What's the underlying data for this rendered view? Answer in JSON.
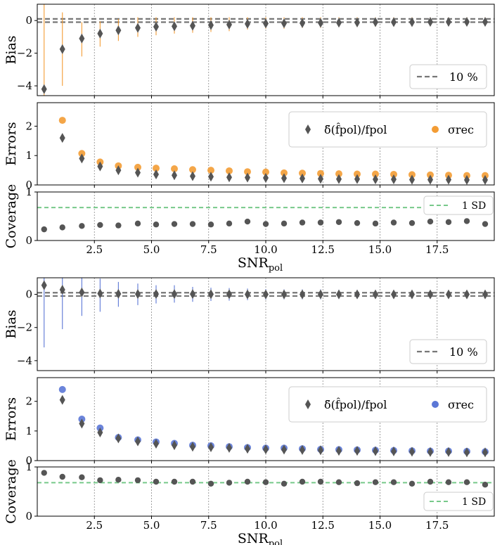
{
  "figure": {
    "xlabel_main": "SNR",
    "xlabel_sub": "pol"
  },
  "colors": {
    "orange": "#f39c34",
    "blue": "#5b77d6",
    "grey": "#555555",
    "green": "#77c98a",
    "ref": "#777777",
    "vgrid": "#888888"
  },
  "chart_data": [
    {
      "type": "scatter",
      "name": "top-bias",
      "ylabel": "Bias",
      "xlim": [
        0,
        20
      ],
      "ylim": [
        -4.6,
        1.0
      ],
      "yticks": [
        0,
        -2,
        -4
      ],
      "legend": {
        "label": "10 %",
        "placement": "lower-right"
      },
      "ref_lines": [
        0.1,
        -0.1
      ],
      "x": [
        0.3,
        1.1,
        1.95,
        2.75,
        3.55,
        4.4,
        5.2,
        6.0,
        6.8,
        7.6,
        8.4,
        9.2,
        10.0,
        10.8,
        11.6,
        12.4,
        13.2,
        14.0,
        14.8,
        15.6,
        16.4,
        17.2,
        18.0,
        18.8,
        19.6
      ],
      "values": [
        -4.2,
        -1.75,
        -1.1,
        -0.8,
        -0.6,
        -0.45,
        -0.38,
        -0.35,
        -0.32,
        -0.28,
        -0.25,
        -0.2,
        -0.18,
        -0.17,
        -0.16,
        -0.14,
        -0.13,
        -0.12,
        -0.1,
        -0.1,
        -0.1,
        -0.08,
        -0.08,
        -0.08,
        -0.08
      ],
      "err_low": [
        -4.6,
        -4.0,
        -2.2,
        -1.6,
        -1.25,
        -1.0,
        -0.9,
        -0.8,
        -0.75,
        -0.7,
        -0.65,
        -0.55,
        -0.5,
        -0.5,
        -0.45,
        -0.45,
        -0.4,
        -0.4,
        -0.38,
        -0.35,
        -0.35,
        -0.35,
        -0.33,
        -0.33,
        -0.3
      ],
      "err_high": [
        1.0,
        0.5,
        -0.1,
        -0.05,
        0.1,
        0.2,
        0.2,
        0.2,
        0.2,
        0.2,
        0.2,
        0.2,
        0.2,
        0.2,
        0.2,
        0.2,
        0.2,
        0.2,
        0.2,
        0.2,
        0.2,
        0.2,
        0.2,
        0.2,
        0.2
      ]
    },
    {
      "type": "scatter",
      "name": "top-errors",
      "ylabel": "Errors",
      "xlim": [
        0,
        20
      ],
      "ylim": [
        0,
        2.8
      ],
      "yticks": [
        0,
        1,
        2
      ],
      "legend": {
        "label_delta": "δ̃(f̂pol)/fpol",
        "label_sigma": "σrec",
        "placement": "top-right"
      },
      "x": [
        1.1,
        1.95,
        2.75,
        3.55,
        4.4,
        5.2,
        6.0,
        6.8,
        7.6,
        8.4,
        9.2,
        10.0,
        10.8,
        11.6,
        12.4,
        13.2,
        14.0,
        14.8,
        15.6,
        16.4,
        17.2,
        18.0,
        18.8,
        19.6
      ],
      "series": [
        {
          "name": "delta",
          "values": [
            1.6,
            0.9,
            0.63,
            0.5,
            0.42,
            0.36,
            0.33,
            0.3,
            0.28,
            0.26,
            0.25,
            0.24,
            0.23,
            0.22,
            0.21,
            0.2,
            0.2,
            0.19,
            0.19,
            0.18,
            0.18,
            0.18,
            0.17,
            0.17
          ]
        },
        {
          "name": "sigma_rec",
          "values": [
            2.2,
            1.07,
            0.78,
            0.65,
            0.6,
            0.57,
            0.55,
            0.52,
            0.5,
            0.48,
            0.45,
            0.44,
            0.41,
            0.4,
            0.39,
            0.38,
            0.37,
            0.37,
            0.36,
            0.35,
            0.34,
            0.33,
            0.32,
            0.32
          ]
        }
      ]
    },
    {
      "type": "scatter",
      "name": "top-coverage",
      "ylabel": "Coverage",
      "xlim": [
        0,
        20
      ],
      "ylim": [
        0,
        1
      ],
      "yticks": [
        0,
        1
      ],
      "legend": {
        "label": "1 SD",
        "placement": "top-right"
      },
      "ref_line": 0.68,
      "xticks": [
        2.5,
        5.0,
        7.5,
        10.0,
        12.5,
        15.0,
        17.5
      ],
      "x": [
        0.3,
        1.1,
        1.95,
        2.75,
        3.55,
        4.4,
        5.2,
        6.0,
        6.8,
        7.6,
        8.4,
        9.2,
        10.0,
        10.8,
        11.6,
        12.4,
        13.2,
        14.0,
        14.8,
        15.6,
        16.4,
        17.2,
        18.0,
        18.8,
        19.6
      ],
      "values": [
        0.23,
        0.27,
        0.3,
        0.32,
        0.31,
        0.35,
        0.33,
        0.34,
        0.34,
        0.33,
        0.35,
        0.39,
        0.34,
        0.35,
        0.37,
        0.37,
        0.38,
        0.36,
        0.35,
        0.37,
        0.36,
        0.39,
        0.38,
        0.4,
        0.34
      ]
    },
    {
      "type": "scatter",
      "name": "bottom-bias",
      "ylabel": "Bias",
      "xlim": [
        0,
        20
      ],
      "ylim": [
        -4.6,
        1.0
      ],
      "yticks": [
        0,
        -2,
        -4
      ],
      "legend": {
        "label": "10 %",
        "placement": "lower-right"
      },
      "ref_lines": [
        0.1,
        -0.1
      ],
      "x": [
        0.3,
        1.1,
        1.95,
        2.75,
        3.55,
        4.4,
        5.2,
        6.0,
        6.8,
        7.6,
        8.4,
        9.2,
        10.0,
        10.8,
        11.6,
        12.4,
        13.2,
        14.0,
        14.8,
        15.6,
        16.4,
        17.2,
        18.0,
        18.8,
        19.6
      ],
      "values": [
        0.55,
        0.28,
        0.12,
        0.05,
        0.03,
        0.02,
        0.02,
        0.02,
        0.02,
        0.01,
        0.01,
        0.0,
        0.0,
        0.0,
        0.0,
        0.0,
        0.0,
        0.0,
        0.0,
        0.0,
        0.0,
        0.0,
        0.0,
        0.0,
        0.0
      ],
      "err_low": [
        -3.2,
        -2.1,
        -1.3,
        -1.05,
        -0.75,
        -0.65,
        -0.55,
        -0.5,
        -0.45,
        -0.4,
        -0.38,
        -0.35,
        -0.32,
        -0.3,
        -0.3,
        -0.3,
        -0.28,
        -0.27,
        -0.26,
        -0.25,
        -0.25,
        -0.24,
        -0.23,
        -0.22,
        -0.22
      ],
      "err_high": [
        1.0,
        1.0,
        1.0,
        0.95,
        0.75,
        0.65,
        0.55,
        0.55,
        0.45,
        0.4,
        0.38,
        0.35,
        0.32,
        0.3,
        0.3,
        0.3,
        0.28,
        0.27,
        0.26,
        0.25,
        0.25,
        0.24,
        0.23,
        0.22,
        0.22
      ]
    },
    {
      "type": "scatter",
      "name": "bottom-errors",
      "ylabel": "Errors",
      "xlim": [
        0,
        20
      ],
      "ylim": [
        0,
        2.8
      ],
      "yticks": [
        0,
        1,
        2
      ],
      "legend": {
        "label_delta": "δ̃(f̂pol)/fpol",
        "label_sigma": "σrec",
        "placement": "top-right"
      },
      "x": [
        1.1,
        1.95,
        2.75,
        3.55,
        4.4,
        5.2,
        6.0,
        6.8,
        7.6,
        8.4,
        9.2,
        10.0,
        10.8,
        11.6,
        12.4,
        13.2,
        14.0,
        14.8,
        15.6,
        16.4,
        17.2,
        18.0,
        18.8,
        19.6
      ],
      "series": [
        {
          "name": "delta",
          "values": [
            2.05,
            1.25,
            0.95,
            0.75,
            0.65,
            0.57,
            0.52,
            0.47,
            0.45,
            0.43,
            0.4,
            0.38,
            0.37,
            0.36,
            0.35,
            0.33,
            0.33,
            0.32,
            0.31,
            0.3,
            0.29,
            0.29,
            0.28,
            0.28
          ]
        },
        {
          "name": "sigma_rec",
          "values": [
            2.4,
            1.4,
            1.1,
            0.78,
            0.7,
            0.63,
            0.58,
            0.52,
            0.5,
            0.47,
            0.44,
            0.42,
            0.42,
            0.4,
            0.38,
            0.37,
            0.36,
            0.35,
            0.34,
            0.33,
            0.32,
            0.32,
            0.31,
            0.3
          ]
        }
      ]
    },
    {
      "type": "scatter",
      "name": "bottom-coverage",
      "ylabel": "Coverage",
      "xlim": [
        0,
        20
      ],
      "ylim": [
        0,
        1
      ],
      "yticks": [
        0,
        1
      ],
      "legend": {
        "label": "1 SD",
        "placement": "lower-right"
      },
      "ref_line": 0.68,
      "xticks": [
        2.5,
        5.0,
        7.5,
        10.0,
        12.5,
        15.0,
        17.5
      ],
      "x": [
        0.3,
        1.1,
        1.95,
        2.75,
        3.55,
        4.4,
        5.2,
        6.0,
        6.8,
        7.6,
        8.4,
        9.2,
        10.0,
        10.8,
        11.6,
        12.4,
        13.2,
        14.0,
        14.8,
        15.6,
        16.4,
        17.2,
        18.0,
        18.8,
        19.6
      ],
      "values": [
        0.88,
        0.8,
        0.79,
        0.73,
        0.74,
        0.73,
        0.7,
        0.7,
        0.7,
        0.66,
        0.68,
        0.7,
        0.69,
        0.66,
        0.7,
        0.7,
        0.69,
        0.67,
        0.69,
        0.69,
        0.66,
        0.7,
        0.69,
        0.69,
        0.64
      ]
    }
  ]
}
